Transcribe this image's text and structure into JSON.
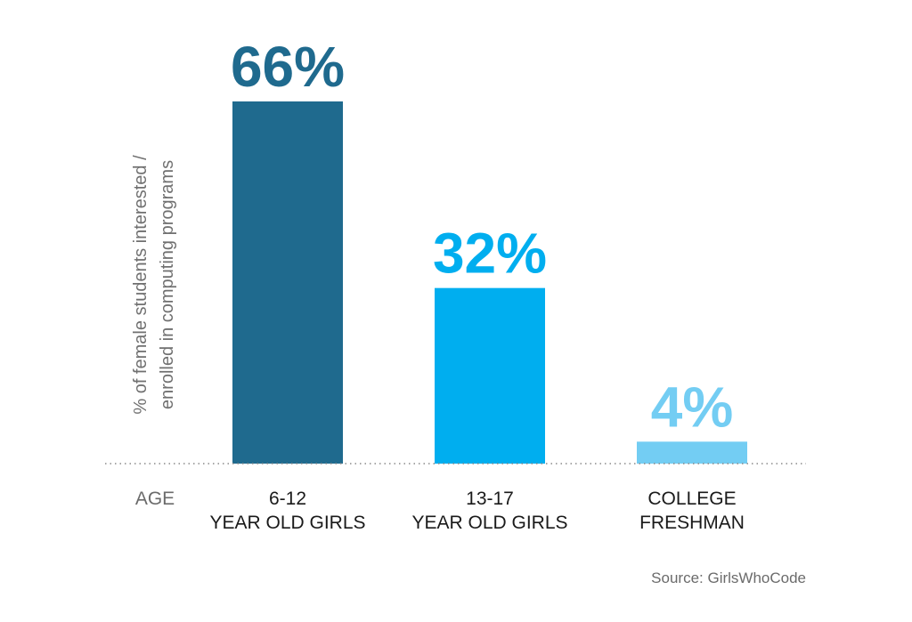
{
  "chart_data": {
    "type": "bar",
    "categories": [
      [
        "6-12",
        "YEAR OLD GIRLS"
      ],
      [
        "13-17",
        "YEAR OLD GIRLS"
      ],
      [
        "COLLEGE",
        "FRESHMAN"
      ]
    ],
    "values": [
      66,
      32,
      4
    ],
    "value_labels": [
      "66%",
      "32%",
      "4%"
    ],
    "colors": [
      "#1f6a8e",
      "#00aeef",
      "#73cdf3"
    ],
    "ylabel": [
      "% of female students interested /",
      "enrolled in computing programs"
    ],
    "xlabel": "AGE",
    "ylim": [
      0,
      66
    ],
    "grid": false,
    "legend": "none"
  },
  "source": "Source: GirlsWhoCode"
}
